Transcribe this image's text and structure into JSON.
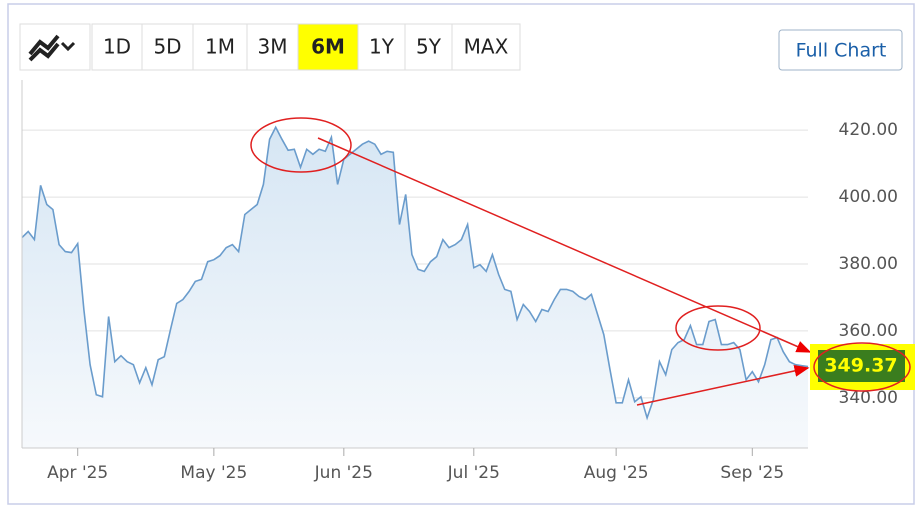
{
  "toolbar": {
    "ranges": [
      "1D",
      "5D",
      "1M",
      "3M",
      "6M",
      "1Y",
      "5Y",
      "MAX"
    ],
    "selected": 4,
    "full_chart": "Full Chart"
  },
  "chart_data": {
    "type": "line",
    "series": [
      {
        "color": "#6a9ccc",
        "values": [
          387.9,
          389.7,
          387.3,
          403.5,
          397.8,
          396.3,
          385.8,
          383.7,
          383.4,
          386.1,
          366.3,
          349.9,
          340.9,
          340.3,
          364.3,
          350.8,
          352.6,
          350.8,
          349.9,
          344.5,
          349.0,
          343.9,
          351.4,
          352.3,
          360.4,
          368.2,
          369.4,
          371.8,
          374.8,
          375.4,
          380.7,
          381.3,
          382.5,
          384.9,
          385.8,
          383.7,
          394.8,
          396.3,
          397.8,
          403.8,
          417.3,
          420.9,
          417.3,
          414.0,
          414.3,
          408.9,
          414.3,
          412.8,
          414.3,
          413.7,
          417.9,
          403.8,
          411.3,
          412.8,
          414.3,
          415.8,
          416.7,
          415.8,
          412.8,
          413.7,
          413.4,
          391.8,
          400.8,
          382.8,
          378.4,
          377.8,
          380.7,
          382.2,
          387.3,
          384.9,
          385.8,
          387.3,
          391.8,
          378.9,
          379.8,
          377.8,
          382.8,
          376.9,
          372.4,
          371.8,
          363.4,
          367.9,
          365.8,
          362.8,
          366.4,
          365.8,
          369.4,
          372.4,
          372.4,
          371.8,
          370.3,
          369.4,
          370.9,
          364.9,
          358.9,
          348.4,
          338.5,
          338.5,
          345.4,
          338.8,
          340.3,
          334.0,
          339.4,
          350.8,
          346.9,
          354.4,
          356.5,
          357.4,
          361.6,
          355.9,
          355.9,
          362.8,
          363.4,
          355.9,
          355.9,
          356.5,
          354.4,
          345.4,
          347.8,
          344.8,
          349.9,
          357.4,
          358.0,
          353.8,
          350.8,
          349.9,
          349.6,
          349.37
        ]
      }
    ],
    "xlim": [
      0,
      127
    ],
    "xticks": [
      {
        "value": 9,
        "label": "Apr '25"
      },
      {
        "value": 31,
        "label": "May '25"
      },
      {
        "value": 52,
        "label": "Jun '25"
      },
      {
        "value": 73,
        "label": "Jul '25"
      },
      {
        "value": 96,
        "label": "Aug '25"
      },
      {
        "value": 118,
        "label": "Sep '25"
      }
    ],
    "ylim": [
      325,
      435
    ],
    "yticks": [
      {
        "value": 340,
        "label": "340.00"
      },
      {
        "value": 360,
        "label": "360.00"
      },
      {
        "value": 380,
        "label": "380.00"
      },
      {
        "value": 400,
        "label": "400.00"
      },
      {
        "value": 420,
        "label": "420.00"
      }
    ],
    "grid": true
  }
}
